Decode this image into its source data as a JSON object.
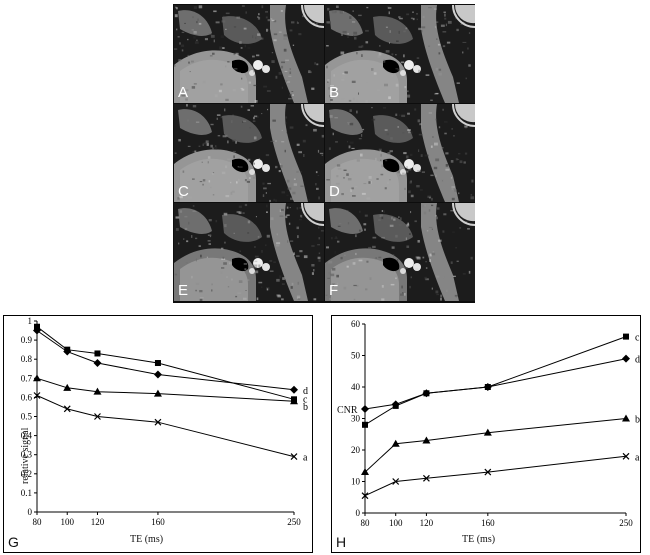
{
  "mri_panels": [
    {
      "letter": "A"
    },
    {
      "letter": "B"
    },
    {
      "letter": "C"
    },
    {
      "letter": "D"
    },
    {
      "letter": "E"
    },
    {
      "letter": "F"
    }
  ],
  "chart_data": [
    {
      "type": "line",
      "panel_label": "G",
      "xlabel": "TE (ms)",
      "ylabel": "relative signal",
      "x": [
        80,
        100,
        120,
        160,
        250
      ],
      "xticks": [
        "80",
        "100",
        "120",
        "160",
        "250"
      ],
      "yticks": [
        "0",
        "0.1",
        "0.2",
        "0.3",
        "0.4",
        "0.5",
        "0.6",
        "0.7",
        "0.8",
        "0.9",
        "1"
      ],
      "ylim": [
        0,
        1
      ],
      "grid": false,
      "legend": "none",
      "series": [
        {
          "name": "a",
          "marker": "x",
          "values": [
            0.61,
            0.54,
            0.5,
            0.47,
            0.29
          ]
        },
        {
          "name": "b",
          "marker": "triangle",
          "values": [
            0.7,
            0.65,
            0.63,
            0.62,
            0.58
          ]
        },
        {
          "name": "c",
          "marker": "square",
          "values": [
            0.97,
            0.85,
            0.83,
            0.78,
            0.59
          ]
        },
        {
          "name": "d",
          "marker": "diamond",
          "values": [
            0.95,
            0.84,
            0.78,
            0.72,
            0.64
          ]
        }
      ]
    },
    {
      "type": "line",
      "panel_label": "H",
      "xlabel": "TE (ms)",
      "ylabel": "CNR",
      "x": [
        80,
        100,
        120,
        160,
        250
      ],
      "xticks": [
        "80",
        "100",
        "120",
        "160",
        "250"
      ],
      "yticks": [
        "0",
        "10",
        "20",
        "30",
        "40",
        "50",
        "60"
      ],
      "ylim": [
        0,
        60
      ],
      "grid": false,
      "legend": "none",
      "series": [
        {
          "name": "a",
          "marker": "x",
          "values": [
            5.5,
            10,
            11,
            13,
            18
          ]
        },
        {
          "name": "b",
          "marker": "triangle",
          "values": [
            13,
            22,
            23,
            25.5,
            30
          ]
        },
        {
          "name": "c",
          "marker": "square",
          "values": [
            28,
            34,
            38,
            40,
            56
          ]
        },
        {
          "name": "d",
          "marker": "diamond",
          "values": [
            33,
            34.5,
            38,
            40,
            49
          ]
        }
      ]
    }
  ]
}
